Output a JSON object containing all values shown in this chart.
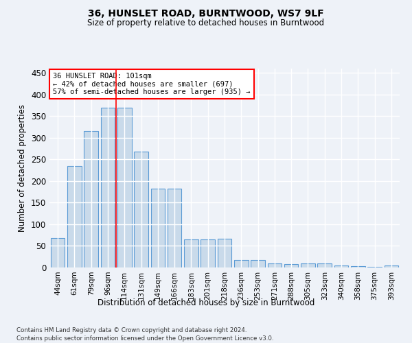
{
  "title1": "36, HUNSLET ROAD, BURNTWOOD, WS7 9LF",
  "title2": "Size of property relative to detached houses in Burntwood",
  "xlabel": "Distribution of detached houses by size in Burntwood",
  "ylabel": "Number of detached properties",
  "categories": [
    "44sqm",
    "61sqm",
    "79sqm",
    "96sqm",
    "114sqm",
    "131sqm",
    "149sqm",
    "166sqm",
    "183sqm",
    "201sqm",
    "218sqm",
    "236sqm",
    "253sqm",
    "271sqm",
    "288sqm",
    "305sqm",
    "323sqm",
    "340sqm",
    "358sqm",
    "375sqm",
    "393sqm"
  ],
  "values": [
    68,
    235,
    315,
    370,
    370,
    268,
    183,
    183,
    65,
    65,
    67,
    18,
    17,
    10,
    8,
    9,
    9,
    5,
    3,
    1,
    4
  ],
  "bar_color": "#c9daea",
  "bar_edge_color": "#5b9bd5",
  "red_line_x": 3.5,
  "annotation_line1": "36 HUNSLET ROAD: 101sqm",
  "annotation_line2": "← 42% of detached houses are smaller (697)",
  "annotation_line3": "57% of semi-detached houses are larger (935) →",
  "annotation_box_color": "white",
  "annotation_box_edge": "red",
  "ylim": [
    0,
    460
  ],
  "yticks": [
    0,
    50,
    100,
    150,
    200,
    250,
    300,
    350,
    400,
    450
  ],
  "footer1": "Contains HM Land Registry data © Crown copyright and database right 2024.",
  "footer2": "Contains public sector information licensed under the Open Government Licence v3.0.",
  "bg_color": "#eef2f8",
  "grid_color": "white"
}
